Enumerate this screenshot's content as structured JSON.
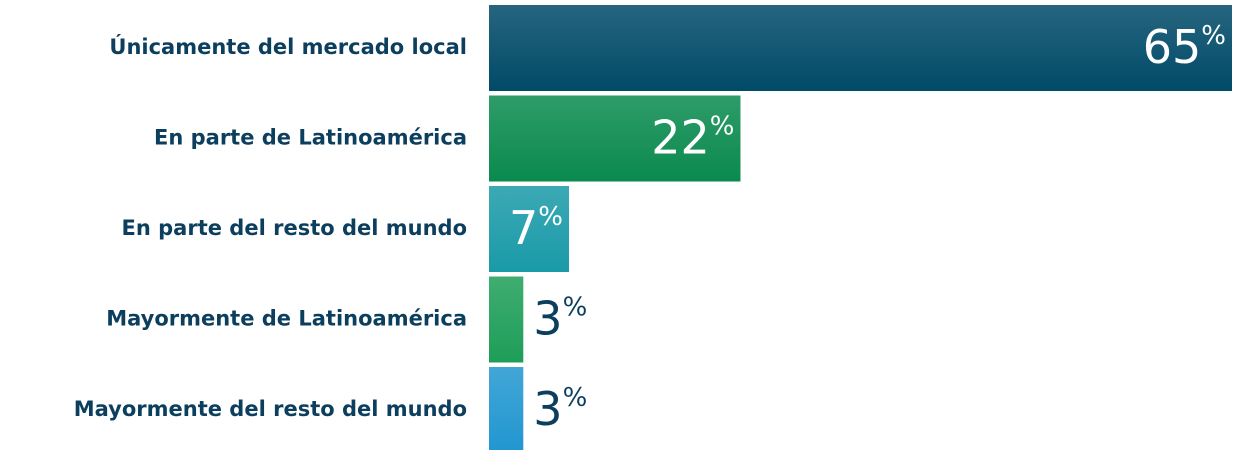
{
  "chart_data": {
    "type": "barh",
    "categories": [
      "Únicamente del mercado local",
      "En parte de Latinoamérica",
      "En parte del resto del mundo",
      "Mayormente de Latinoamérica",
      "Mayormente del resto del mundo"
    ],
    "values": [
      65,
      22,
      7,
      3,
      3
    ],
    "value_labels": [
      "65%",
      "22%",
      "7%",
      "3%",
      "3%"
    ],
    "colors": [
      "#004a68",
      "#0a8a4e",
      "#1a9aa8",
      "#1e9e58",
      "#2196d0"
    ]
  }
}
